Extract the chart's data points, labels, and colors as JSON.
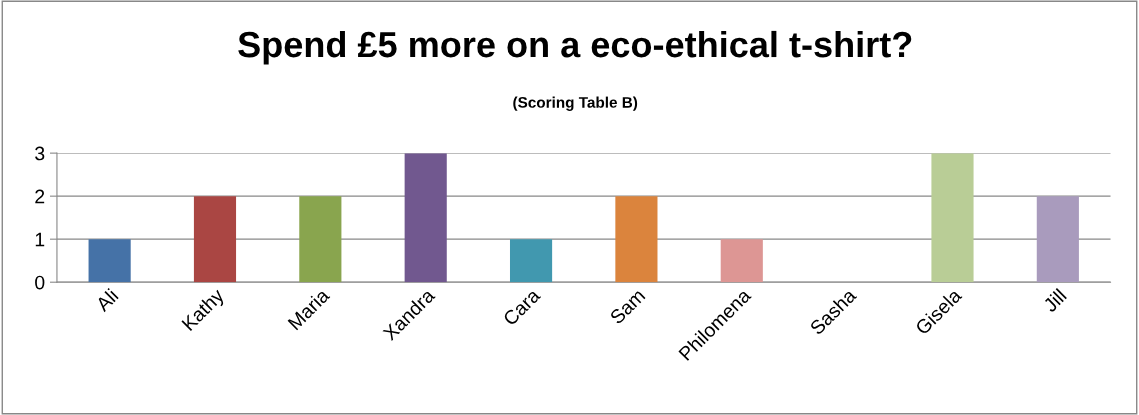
{
  "chart_data": {
    "type": "bar",
    "title": "Spend £5 more on a eco-ethical t-shirt?",
    "subtitle": "(Scoring Table B)",
    "categories": [
      "Ali",
      "Kathy",
      "Maria",
      "Xandra",
      "Cara",
      "Sam",
      "Philomena",
      "Sasha",
      "Gisela",
      "Jill"
    ],
    "values": [
      1,
      2,
      2,
      3,
      1,
      2,
      1,
      0,
      3,
      2
    ],
    "colors": [
      "#4572a7",
      "#aa4643",
      "#89a54e",
      "#71588f",
      "#4198af",
      "#db843d",
      "#dd9694",
      "#93a9cf",
      "#b9cd96",
      "#a99bbd"
    ],
    "ylim": [
      0,
      3
    ],
    "yticks": [
      0,
      1,
      2,
      3
    ],
    "grid": "y",
    "legend": false
  }
}
